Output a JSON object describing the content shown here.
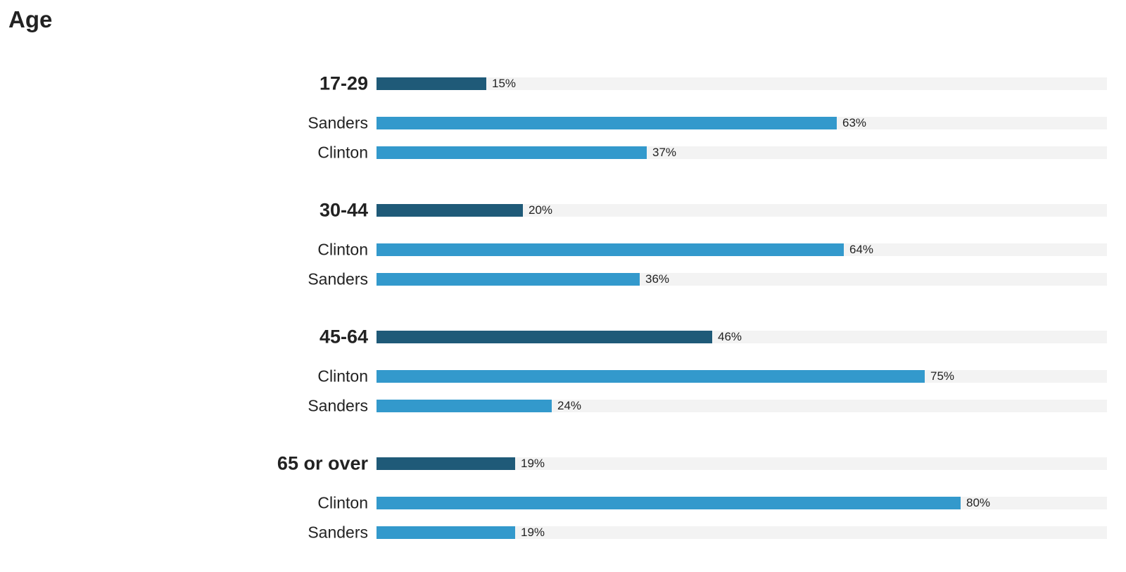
{
  "title": "Age",
  "colors": {
    "group_bar": "#1f5a78",
    "candidate_bar": "#3399cc",
    "track": "#f3f3f3"
  },
  "chart_data": {
    "type": "bar",
    "orientation": "horizontal",
    "title": "Age",
    "xlim": [
      0,
      100
    ],
    "unit": "%",
    "groups": [
      {
        "label": "17-29",
        "share": 15,
        "share_label": "15%",
        "candidates": [
          {
            "name": "Sanders",
            "value": 63,
            "value_label": "63%"
          },
          {
            "name": "Clinton",
            "value": 37,
            "value_label": "37%"
          }
        ]
      },
      {
        "label": "30-44",
        "share": 20,
        "share_label": "20%",
        "candidates": [
          {
            "name": "Clinton",
            "value": 64,
            "value_label": "64%"
          },
          {
            "name": "Sanders",
            "value": 36,
            "value_label": "36%"
          }
        ]
      },
      {
        "label": "45-64",
        "share": 46,
        "share_label": "46%",
        "candidates": [
          {
            "name": "Clinton",
            "value": 75,
            "value_label": "75%"
          },
          {
            "name": "Sanders",
            "value": 24,
            "value_label": "24%"
          }
        ]
      },
      {
        "label": "65 or over",
        "share": 19,
        "share_label": "19%",
        "candidates": [
          {
            "name": "Clinton",
            "value": 80,
            "value_label": "80%"
          },
          {
            "name": "Sanders",
            "value": 19,
            "value_label": "19%"
          }
        ]
      }
    ]
  }
}
